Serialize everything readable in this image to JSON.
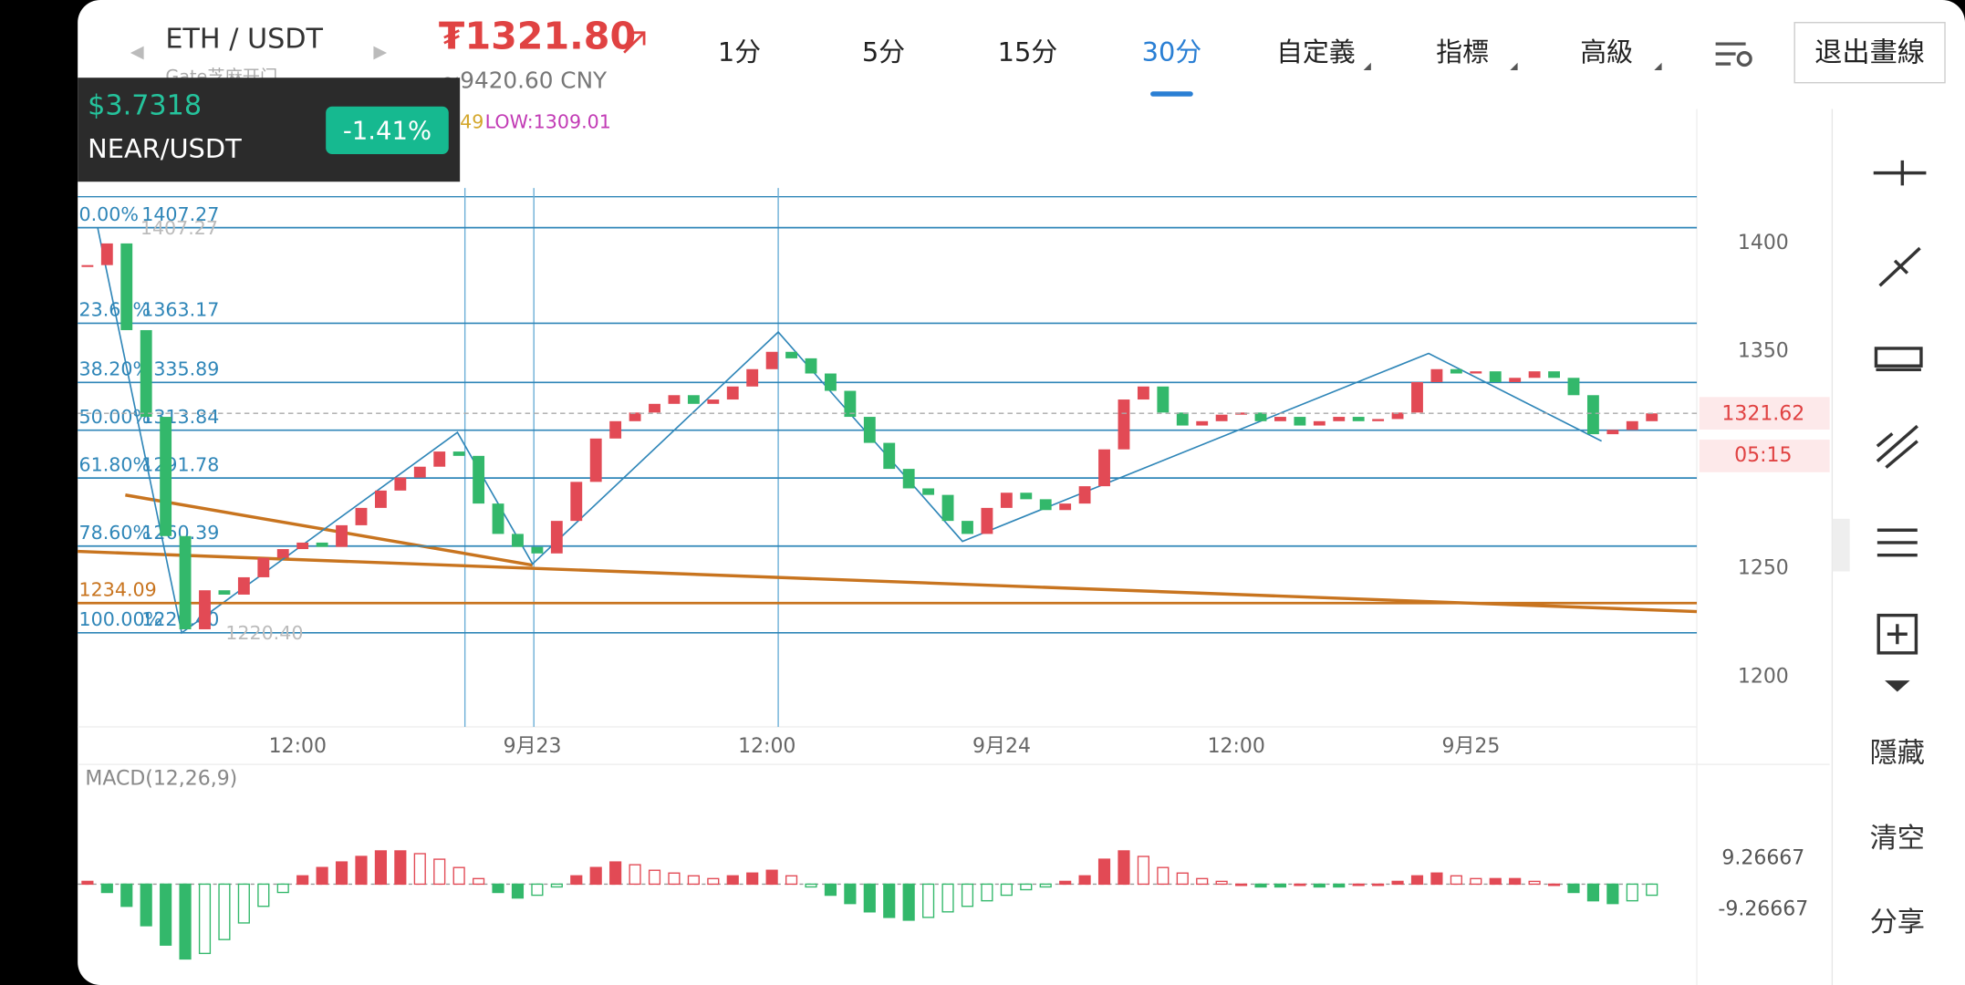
{
  "header": {
    "pair": "ETH / USDT",
    "exchange": "Gate芝麻开门",
    "price": "₮1321.80",
    "cny": "≈9420.60 CNY"
  },
  "tabs": [
    "1分",
    "5分",
    "15分",
    "30分",
    "自定義",
    "指標",
    "高級"
  ],
  "active_tab": "30分",
  "exit_button": "退出畫線",
  "overlay": {
    "price": "$3.7318",
    "pair": "NEAR/USDT",
    "change": "-1.41%"
  },
  "indicator": {
    "boll_tail": "49",
    "low": "LOW:1309.01"
  },
  "chart_data": {
    "type": "candlestick",
    "closes": [
      1390,
      1400,
      1360,
      1320,
      1265,
      1222,
      1240,
      1238,
      1246,
      1255,
      1259,
      1262,
      1260,
      1270,
      1278,
      1286,
      1292,
      1297,
      1304,
      1302,
      1280,
      1266,
      1260,
      1257,
      1272,
      1290,
      1310,
      1318,
      1322,
      1326,
      1330,
      1326,
      1328,
      1334,
      1342,
      1350,
      1347,
      1340,
      1332,
      1320,
      1308,
      1296,
      1287,
      1284,
      1272,
      1266,
      1278,
      1285,
      1282,
      1277,
      1280,
      1288,
      1305,
      1328,
      1334,
      1322,
      1316,
      1318,
      1321,
      1322,
      1318,
      1320,
      1316,
      1318,
      1320,
      1318,
      1319,
      1322,
      1336,
      1342,
      1340,
      1341,
      1336,
      1338,
      1341,
      1338,
      1330,
      1312,
      1314,
      1318,
      1321.62
    ],
    "up_color": "#e24a55",
    "down_color": "#33b86b",
    "ylim": [
      1177,
      1462
    ],
    "yticks": [
      1200,
      1250,
      1350,
      1400
    ],
    "xlim": [
      -0.5,
      82.3
    ],
    "xticks": [
      {
        "value": 10.75,
        "label": "12:00"
      },
      {
        "value": 22.75,
        "label": "9月23"
      },
      {
        "value": 34.75,
        "label": "12:00"
      },
      {
        "value": 46.75,
        "label": "9月24"
      },
      {
        "value": 58.75,
        "label": "12:00"
      },
      {
        "value": 70.75,
        "label": "9月25"
      }
    ],
    "fib_levels": [
      {
        "level": "0.00%",
        "price": 1407.27
      },
      {
        "level": "23.60%",
        "price": 1363.17
      },
      {
        "level": "38.20%",
        "price": 1335.89
      },
      {
        "level": "50.00%",
        "price": 1313.84
      },
      {
        "level": "61.80%",
        "price": 1291.78
      },
      {
        "level": "78.60%",
        "price": 1260.39
      },
      {
        "level": "100.00%",
        "price": {
          "value": 1220.4,
          "label": "1220.40"
        }
      }
    ],
    "fib_color": "#2f86b8",
    "trend_level": 1234.09,
    "trend_color": "#c8741f",
    "last_price": 1321.62,
    "countdown": "05:15"
  },
  "macd": {
    "title": "MACD(12,26,9)",
    "hist": [
      1,
      -3,
      -8,
      -15,
      -22,
      -27,
      -25,
      -20,
      -14,
      -8,
      -3,
      3,
      6,
      8,
      10,
      12,
      12,
      11,
      9,
      6,
      2,
      -3,
      -5,
      -4,
      -1,
      3,
      6,
      8,
      7,
      5,
      4,
      3,
      2,
      3,
      4,
      5,
      3,
      -1,
      -4,
      -7,
      -10,
      -12,
      -13,
      -12,
      -10,
      -8,
      -6,
      -4,
      -2,
      -1,
      1,
      3,
      9,
      12,
      10,
      6,
      4,
      2,
      1,
      0,
      -1,
      -1,
      0,
      -1,
      -1,
      0,
      0,
      1,
      3,
      4,
      3,
      2,
      2,
      2,
      1,
      0,
      -3,
      -6,
      -7,
      -6,
      -4
    ],
    "ylim": [
      -36.4,
      42.3
    ],
    "yticks": [
      9.26667,
      -9.26667
    ]
  },
  "sidebar": [
    "隱藏",
    "清空",
    "分享"
  ]
}
